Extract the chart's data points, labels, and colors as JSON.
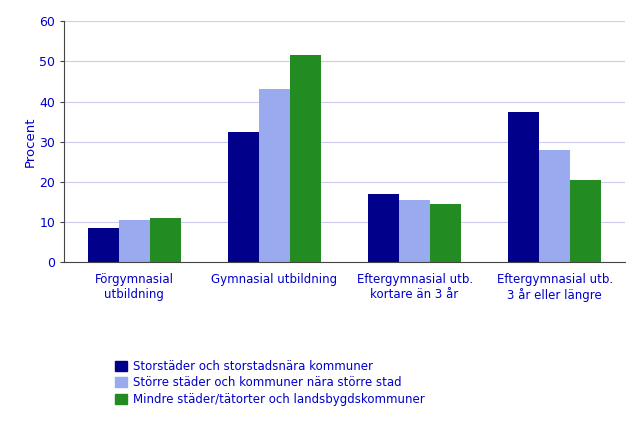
{
  "categories": [
    "Förgymnasial\nutbildning",
    "Gymnasial utbildning",
    "Eftergymnasial utb.\nkortare än 3 år",
    "Eftergymnasial utb.\n3 år eller längre"
  ],
  "series": [
    {
      "label": "Storstäder och storstadsnära kommuner",
      "color": "#00008B",
      "values": [
        8.5,
        32.5,
        17.0,
        37.5
      ]
    },
    {
      "label": "Större städer och kommuner nära större stad",
      "color": "#99AAEE",
      "values": [
        10.5,
        43.0,
        15.5,
        28.0
      ]
    },
    {
      "label": "Mindre städer/tätorter och landsbygdskommuner",
      "color": "#228B22",
      "values": [
        11.0,
        51.5,
        14.5,
        20.5
      ]
    }
  ],
  "ylabel": "Procent",
  "ylim": [
    0,
    60
  ],
  "yticks": [
    0,
    10,
    20,
    30,
    40,
    50,
    60
  ],
  "bar_width": 0.22,
  "title_color": "#0000CC",
  "axis_label_color": "#0000CC",
  "tick_label_color": "#0000CC",
  "legend_text_color": "#0000CC",
  "background_color": "#ffffff",
  "grid_color": "#ccccee"
}
